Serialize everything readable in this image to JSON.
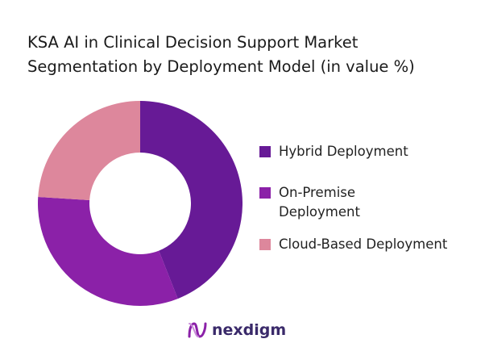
{
  "chart_data": {
    "type": "pie",
    "donut": true,
    "title": "KSA AI in Clinical Decision Support Market Segmentation by Deployment Model (in value %)",
    "title_lines": [
      "KSA AI in Clinical Decision Support Market",
      "Segmentation by Deployment Model (in value %)"
    ],
    "categories": [
      "Hybrid Deployment",
      "On-Premise Deployment",
      "Cloud-Based Deployment"
    ],
    "legend_lines": [
      [
        "Hybrid Deployment"
      ],
      [
        "On-Premise",
        "Deployment"
      ],
      [
        "Cloud-Based Deployment"
      ]
    ],
    "values": [
      44,
      32,
      24
    ],
    "colors": [
      "#671A96",
      "#8B21A8",
      "#DD879C"
    ],
    "legend": "right"
  },
  "logo": {
    "text": "nexdigm",
    "color": "#8B21A8"
  }
}
